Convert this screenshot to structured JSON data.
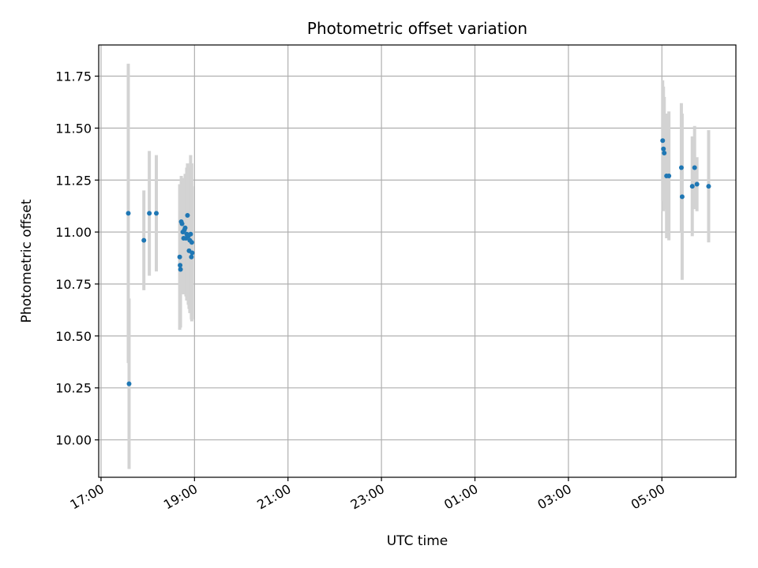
{
  "chart_data": {
    "type": "scatter",
    "title": "Photometric offset variation",
    "xlabel": "UTC time",
    "ylabel": "Photometric offset",
    "grid": true,
    "x_axis": {
      "kind": "time",
      "start": "2023-01-01T16:57:00",
      "end": "2023-01-02T06:35:00",
      "ticks": [
        {
          "label": "17:00",
          "time": "2023-01-01T17:00:00"
        },
        {
          "label": "19:00",
          "time": "2023-01-01T19:00:00"
        },
        {
          "label": "21:00",
          "time": "2023-01-01T21:00:00"
        },
        {
          "label": "23:00",
          "time": "2023-01-01T23:00:00"
        },
        {
          "label": "01:00",
          "time": "2023-01-02T01:00:00"
        },
        {
          "label": "03:00",
          "time": "2023-01-02T03:00:00"
        },
        {
          "label": "05:00",
          "time": "2023-01-02T05:00:00"
        }
      ]
    },
    "ylim": [
      9.82,
      11.9
    ],
    "yticks": [
      "10.00",
      "10.25",
      "10.50",
      "10.75",
      "11.00",
      "11.25",
      "11.50",
      "11.75"
    ],
    "colors": {
      "point": "#1f77b4",
      "errorbar": "#d3d3d3",
      "grid": "#b0b0b0"
    },
    "points": [
      {
        "t": "2023-01-01T17:35:00",
        "y": 11.09,
        "err": 0.72
      },
      {
        "t": "2023-01-01T17:36:00",
        "y": 10.27,
        "err": 0.41
      },
      {
        "t": "2023-01-01T17:55:00",
        "y": 10.96,
        "err": 0.24
      },
      {
        "t": "2023-01-01T18:02:00",
        "y": 11.09,
        "err": 0.3
      },
      {
        "t": "2023-01-01T18:11:00",
        "y": 11.09,
        "err": 0.28
      },
      {
        "t": "2023-01-01T18:41:00",
        "y": 10.88,
        "err": 0.35
      },
      {
        "t": "2023-01-01T18:41:30",
        "y": 10.84,
        "err": 0.3
      },
      {
        "t": "2023-01-01T18:42:00",
        "y": 10.82,
        "err": 0.28
      },
      {
        "t": "2023-01-01T18:43:00",
        "y": 11.05,
        "err": 0.22
      },
      {
        "t": "2023-01-01T18:44:00",
        "y": 11.04,
        "err": 0.22
      },
      {
        "t": "2023-01-01T18:45:00",
        "y": 11.0,
        "err": 0.25
      },
      {
        "t": "2023-01-01T18:46:00",
        "y": 10.97,
        "err": 0.27
      },
      {
        "t": "2023-01-01T18:47:00",
        "y": 11.01,
        "err": 0.24
      },
      {
        "t": "2023-01-01T18:48:00",
        "y": 11.02,
        "err": 0.26
      },
      {
        "t": "2023-01-01T18:49:00",
        "y": 10.97,
        "err": 0.28
      },
      {
        "t": "2023-01-01T18:50:00",
        "y": 10.99,
        "err": 0.32
      },
      {
        "t": "2023-01-01T18:51:00",
        "y": 11.08,
        "err": 0.25
      },
      {
        "t": "2023-01-01T18:52:00",
        "y": 10.98,
        "err": 0.33
      },
      {
        "t": "2023-01-01T18:53:00",
        "y": 10.91,
        "err": 0.28
      },
      {
        "t": "2023-01-01T18:54:00",
        "y": 10.96,
        "err": 0.35
      },
      {
        "t": "2023-01-01T18:55:00",
        "y": 10.99,
        "err": 0.38
      },
      {
        "t": "2023-01-01T18:56:00",
        "y": 10.88,
        "err": 0.3
      },
      {
        "t": "2023-01-01T18:57:00",
        "y": 10.9,
        "err": 0.32
      },
      {
        "t": "2023-01-01T18:56:30",
        "y": 10.95,
        "err": 0.38
      },
      {
        "t": "2023-01-02T05:01:00",
        "y": 11.44,
        "err": 0.29
      },
      {
        "t": "2023-01-02T05:02:00",
        "y": 11.4,
        "err": 0.3
      },
      {
        "t": "2023-01-02T05:03:00",
        "y": 11.38,
        "err": 0.27
      },
      {
        "t": "2023-01-02T05:06:00",
        "y": 11.27,
        "err": 0.3
      },
      {
        "t": "2023-01-02T05:09:00",
        "y": 11.27,
        "err": 0.31
      },
      {
        "t": "2023-01-02T05:25:00",
        "y": 11.31,
        "err": 0.31
      },
      {
        "t": "2023-01-02T05:26:00",
        "y": 11.17,
        "err": 0.4
      },
      {
        "t": "2023-01-02T05:39:00",
        "y": 11.22,
        "err": 0.24
      },
      {
        "t": "2023-01-02T05:42:00",
        "y": 11.31,
        "err": 0.2
      },
      {
        "t": "2023-01-02T05:45:00",
        "y": 11.23,
        "err": 0.13
      },
      {
        "t": "2023-01-02T06:00:00",
        "y": 11.22,
        "err": 0.27
      }
    ]
  }
}
